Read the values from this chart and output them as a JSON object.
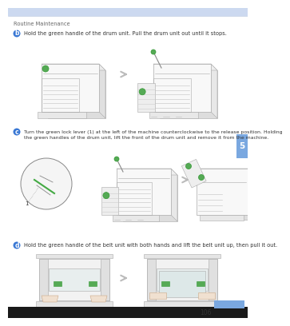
{
  "page_bg": "#ffffff",
  "header_bar_color": "#ccd9f0",
  "header_bar_height": 10,
  "header_text": "Routine Maintenance",
  "header_text_color": "#666666",
  "header_font_size": 4.8,
  "step_circle_color": "#3a78d4",
  "step_circle_text_color": "#ffffff",
  "step_b_label": "b",
  "step_c_label": "c",
  "step_d_label": "d",
  "step_b_text": "Hold the green handle of the drum unit. Pull the drum unit out until it stops.",
  "step_c_text_1": "Turn the green lock lever (1) at the left of the machine counterclockwise to the release position. Holding",
  "step_c_text_2": "the green handles of the drum unit, lift the front of the drum unit and remove it from the machine.",
  "step_d_text": "Hold the green handle of the belt unit with both hands and lift the belt unit up, then pull it out.",
  "arrow_color": "#bbbbbb",
  "side_tab_color": "#7aa8e0",
  "side_tab_text": "5",
  "side_tab_text_color": "#ffffff",
  "page_num": "106",
  "page_num_color": "#333333",
  "bottom_bar_color": "#1a1a1a",
  "bottom_bar_height": 14,
  "printer_body_fill": "#f8f8f8",
  "printer_body_edge": "#aaaaaa",
  "printer_shadow": "#dddddd",
  "drum_stripe_color": "#cccccc",
  "green_handle": "#55aa55",
  "magnify_fill": "#f5f5f5",
  "lever_color": "#44aa44",
  "belt_fill": "#e8eeee",
  "hand_fill": "#f0e0d0",
  "hand_edge": "#ccaa88"
}
